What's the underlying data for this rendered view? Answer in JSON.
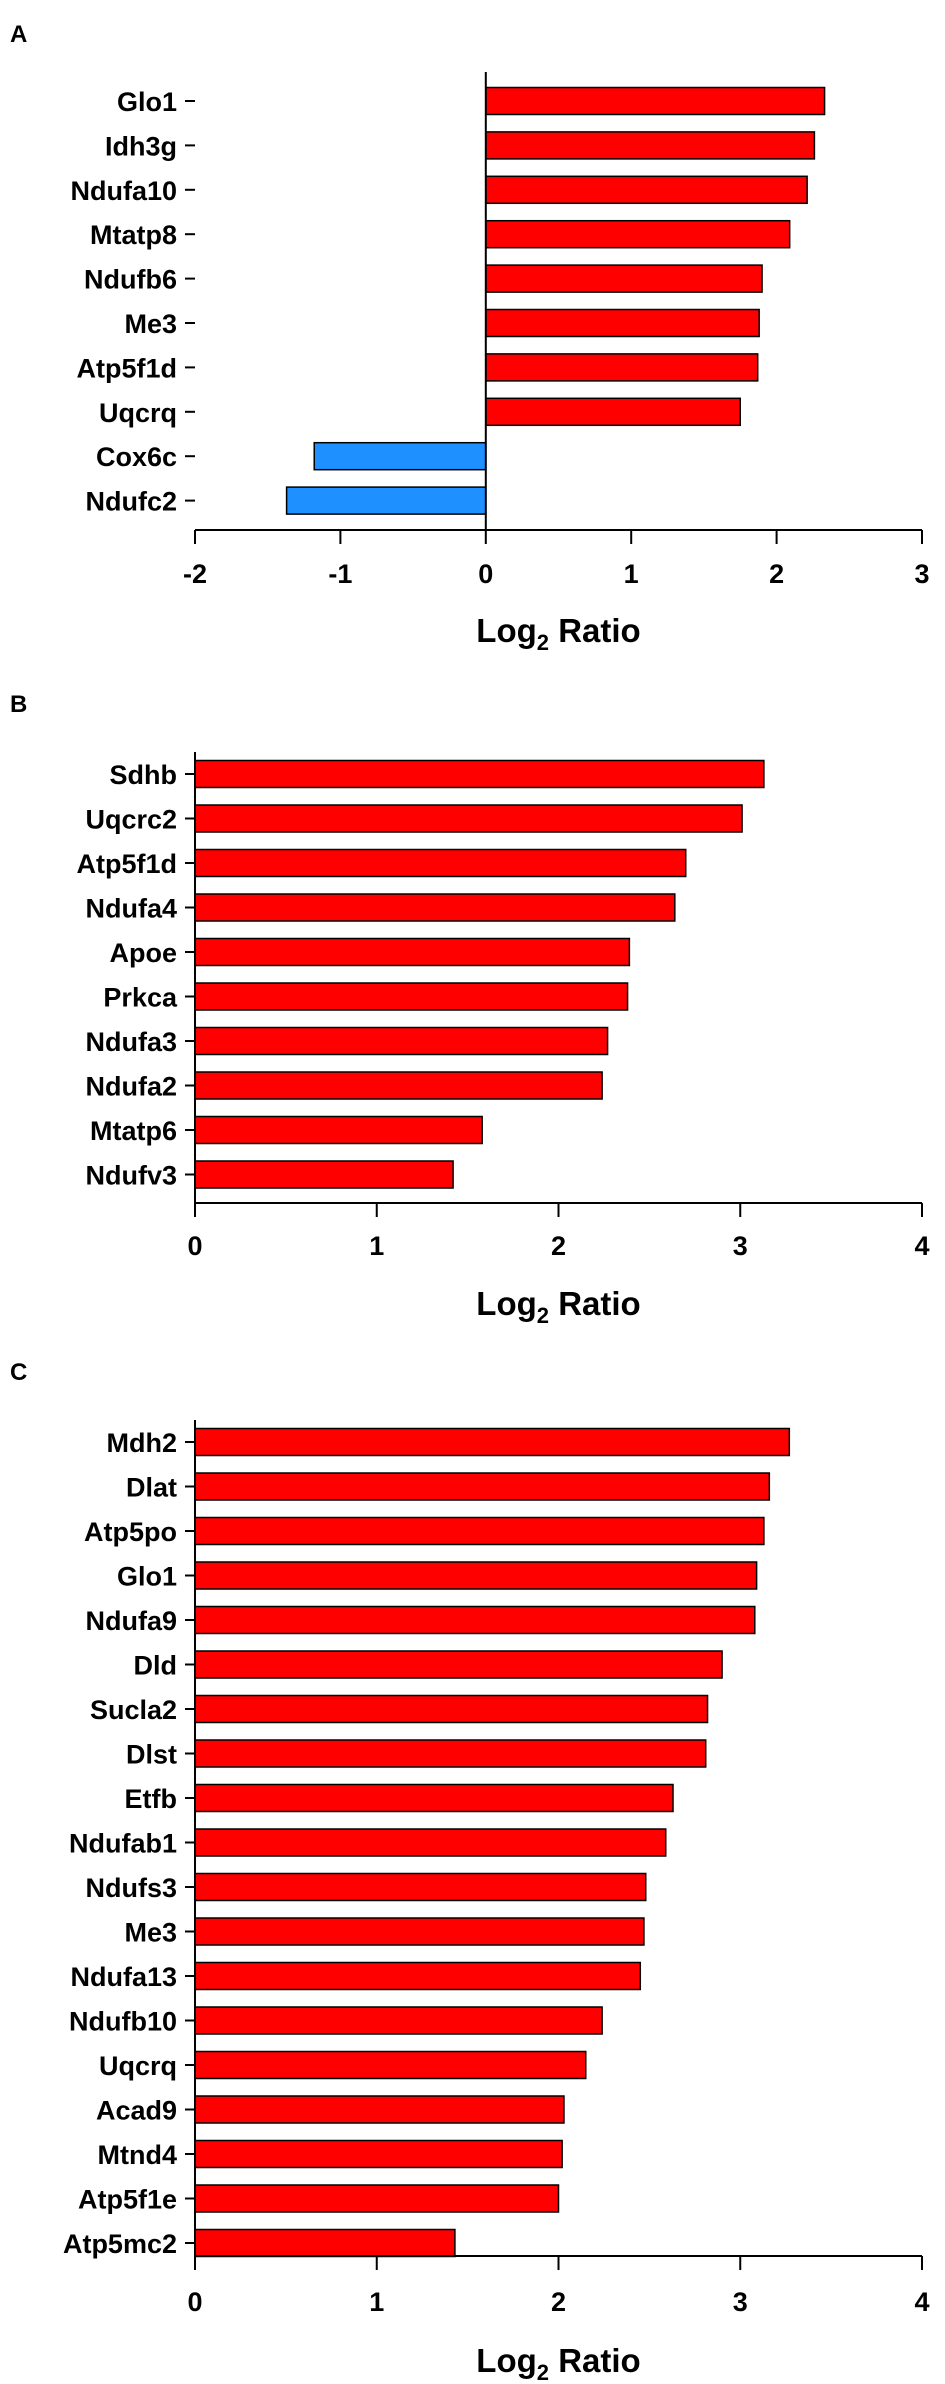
{
  "colors": {
    "positive": "#ff0000",
    "negative": "#1e90ff",
    "stroke": "#000000"
  },
  "chart_data": [
    {
      "panel": "A",
      "type": "bar",
      "orientation": "horizontal",
      "categories": [
        "Glo1",
        "Idh3g",
        "Ndufa10",
        "Mtatp8",
        "Ndufb6",
        "Me3",
        "Atp5f1d",
        "Uqcrq",
        "Cox6c",
        "Ndufc2"
      ],
      "values": [
        2.33,
        2.26,
        2.21,
        2.09,
        1.9,
        1.88,
        1.87,
        1.75,
        -1.18,
        -1.37
      ],
      "xlim": [
        -2,
        3
      ],
      "xticks": [
        "-2",
        "-1",
        "0",
        "1",
        "2",
        "3"
      ],
      "xlabel": "Log",
      "xlabel_sub": "2",
      "xlabel_rest": " Ratio",
      "grid": false
    },
    {
      "panel": "B",
      "type": "bar",
      "orientation": "horizontal",
      "categories": [
        "Sdhb",
        "Uqcrc2",
        "Atp5f1d",
        "Ndufa4",
        "Apoe",
        "Prkca",
        "Ndufa3",
        "Ndufa2",
        "Mtatp6",
        "Ndufv3"
      ],
      "values": [
        3.13,
        3.01,
        2.7,
        2.64,
        2.39,
        2.38,
        2.27,
        2.24,
        1.58,
        1.42
      ],
      "xlim": [
        0,
        4
      ],
      "xticks": [
        "0",
        "1",
        "2",
        "3",
        "4"
      ],
      "xlabel": "Log",
      "xlabel_sub": "2",
      "xlabel_rest": " Ratio",
      "grid": false
    },
    {
      "panel": "C",
      "type": "bar",
      "orientation": "horizontal",
      "categories": [
        "Mdh2",
        "Dlat",
        "Atp5po",
        "Glo1",
        "Ndufa9",
        "Dld",
        "Sucla2",
        "Dlst",
        "Etfb",
        "Ndufab1",
        "Ndufs3",
        "Me3",
        "Ndufa13",
        "Ndufb10",
        "Uqcrq",
        "Acad9",
        "Mtnd4",
        "Atp5f1e",
        "Atp5mc2"
      ],
      "values": [
        3.27,
        3.16,
        3.13,
        3.09,
        3.08,
        2.9,
        2.82,
        2.81,
        2.63,
        2.59,
        2.48,
        2.47,
        2.45,
        2.24,
        2.15,
        2.03,
        2.02,
        2.0,
        1.43
      ],
      "xlim": [
        0,
        4
      ],
      "xticks": [
        "0",
        "1",
        "2",
        "3",
        "4"
      ],
      "xlabel": "Log",
      "xlabel_sub": "2",
      "xlabel_rest": " Ratio",
      "grid": false
    }
  ]
}
